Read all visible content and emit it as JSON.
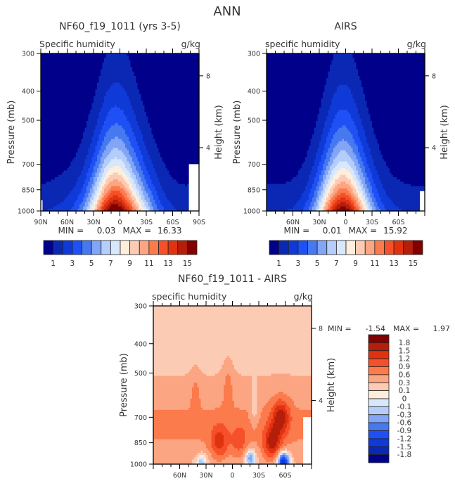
{
  "figure_title": "ANN",
  "chart_data": [
    {
      "type": "heatmap",
      "id": "model",
      "title": "NF60_f19_1011 (yrs 3-5)",
      "left_string": "Specific humidity",
      "right_string": "g/kg",
      "xlabel": "",
      "ylabel": "Pressure (mb)",
      "y2label": "Height (km)",
      "x_range": [
        90,
        -90
      ],
      "x_ticks": [
        {
          "value": 90,
          "label": "90N"
        },
        {
          "value": 60,
          "label": "60N"
        },
        {
          "value": 30,
          "label": "30N"
        },
        {
          "value": 0,
          "label": "0"
        },
        {
          "value": -30,
          "label": "30S"
        },
        {
          "value": -60,
          "label": "60S"
        },
        {
          "value": -90,
          "label": "90S"
        }
      ],
      "y_ticks": [
        300,
        400,
        500,
        700,
        850,
        1000
      ],
      "y_range": [
        1000,
        300
      ],
      "y2_ticks": [
        {
          "value": 8,
          "label": "8"
        },
        {
          "value": 4,
          "label": "4"
        }
      ],
      "stats": {
        "min_label": "MIN =",
        "min": "0.03",
        "max_label": "MAX =",
        "max": "16.33"
      },
      "contour_levels": [
        1,
        2,
        3,
        4,
        5,
        6,
        7,
        8,
        9,
        10,
        11,
        12,
        13,
        14,
        15
      ],
      "colorbar_labels": [
        "1",
        "3",
        "5",
        "7",
        "9",
        "11",
        "13",
        "15"
      ],
      "peak": {
        "lat": 2,
        "value": 16.33
      },
      "top_levels_by_lat": [
        {
          "lat": 90,
          "p": 700
        },
        {
          "lat": 70,
          "p": 620
        },
        {
          "lat": 50,
          "p": 520
        },
        {
          "lat": 30,
          "p": 490
        },
        {
          "lat": 10,
          "p": 420
        },
        {
          "lat": 0,
          "p": 420
        },
        {
          "lat": -20,
          "p": 480
        },
        {
          "lat": -40,
          "p": 520
        },
        {
          "lat": -55,
          "p": 540
        },
        {
          "lat": -70,
          "p": 620
        },
        {
          "lat": -80,
          "p": 880
        }
      ],
      "missing_regions": [
        {
          "lat_from": -78,
          "lat_to": -90,
          "p_from": 700,
          "p_to": 1000
        },
        {
          "lat_from": 90,
          "lat_to": 89,
          "p_from": 920,
          "p_to": 1000
        }
      ]
    },
    {
      "type": "heatmap",
      "id": "obs",
      "title": "AIRS",
      "left_string": "specific humidity",
      "right_string": "g/kg",
      "xlabel": "",
      "ylabel": "Pressure (mb)",
      "y2label": "Height (km)",
      "x_range": [
        90,
        -90
      ],
      "x_ticks": [
        {
          "value": 60,
          "label": "60N"
        },
        {
          "value": 30,
          "label": "30N"
        },
        {
          "value": 0,
          "label": "0"
        },
        {
          "value": -30,
          "label": "30S"
        },
        {
          "value": -60,
          "label": "60S"
        }
      ],
      "y_ticks": [
        300,
        400,
        500,
        700,
        850,
        1000
      ],
      "y_range": [
        1000,
        300
      ],
      "y2_ticks": [
        {
          "value": 8,
          "label": "8"
        },
        {
          "value": 4,
          "label": "4"
        }
      ],
      "stats": {
        "min_label": "MIN =",
        "min": "0.01",
        "max_label": "MAX =",
        "max": "15.92"
      },
      "contour_levels": [
        1,
        2,
        3,
        4,
        5,
        6,
        7,
        8,
        9,
        10,
        11,
        12,
        13,
        14,
        15
      ],
      "colorbar_labels": [
        "1",
        "3",
        "5",
        "7",
        "9",
        "11",
        "13",
        "15"
      ],
      "peak": {
        "lat": 2,
        "value": 15.92
      },
      "missing_regions": [
        {
          "lat_from": -85,
          "lat_to": -90,
          "p_from": 850,
          "p_to": 1000
        }
      ]
    },
    {
      "type": "heatmap",
      "id": "diff",
      "title": "NF60_f19_1011 - AIRS",
      "left_string": "specific humidity",
      "right_string": "g/kg",
      "xlabel": "",
      "ylabel": "Pressure (mb)",
      "y2label": "Height (km)",
      "x_range": [
        90,
        -90
      ],
      "x_ticks": [
        {
          "value": 60,
          "label": "60N"
        },
        {
          "value": 30,
          "label": "30N"
        },
        {
          "value": 0,
          "label": "0"
        },
        {
          "value": -30,
          "label": "30S"
        },
        {
          "value": -60,
          "label": "60S"
        }
      ],
      "y_ticks": [
        300,
        400,
        500,
        700,
        850,
        1000
      ],
      "y_range": [
        1000,
        300
      ],
      "y2_ticks": [
        {
          "value": 8,
          "label": "8"
        },
        {
          "value": 4,
          "label": "4"
        }
      ],
      "stats": {
        "min_label": "MIN =",
        "min": "-1.54",
        "max_label": "MAX =",
        "max": "1.97"
      },
      "contour_levels": [
        -1.8,
        -1.5,
        -1.2,
        -0.9,
        -0.6,
        -0.3,
        -0.1,
        0,
        0.1,
        0.3,
        0.6,
        0.9,
        1.2,
        1.5,
        1.8
      ],
      "colorbar_labels": [
        "1.8",
        "1.5",
        "1.2",
        "0.9",
        "0.6",
        "0.3",
        "0.1",
        "0",
        "-0.1",
        "-0.3",
        "-0.6",
        "-0.9",
        "-1.2",
        "-1.5",
        "-1.8"
      ],
      "features": [
        {
          "kind": "max",
          "lat": 15,
          "p": 850,
          "value": 1.5
        },
        {
          "kind": "max",
          "lat": -8,
          "p": 850,
          "value": 1.2
        },
        {
          "kind": "max",
          "lat": -45,
          "p": 850,
          "value": 1.8
        },
        {
          "kind": "max",
          "lat": -55,
          "p": 700,
          "value": 1.8
        },
        {
          "kind": "min",
          "lat": -20,
          "p": 950,
          "value": -0.6
        },
        {
          "kind": "min",
          "lat": -58,
          "p": 980,
          "value": -1.5
        },
        {
          "kind": "min",
          "lat": 35,
          "p": 980,
          "value": -0.3
        }
      ],
      "missing_regions": [
        {
          "lat_from": -80,
          "lat_to": -90,
          "p_from": 700,
          "p_to": 1000
        }
      ]
    }
  ],
  "palette_16": [
    "#00008b",
    "#0a28b4",
    "#0f3ad7",
    "#1e50f5",
    "#4678f0",
    "#82a5f5",
    "#b4cdfa",
    "#d7e8fd",
    "#feeedc",
    "#fccbb4",
    "#fca582",
    "#fb7b4c",
    "#f5502a",
    "#e13210",
    "#b41e0a",
    "#820000"
  ]
}
